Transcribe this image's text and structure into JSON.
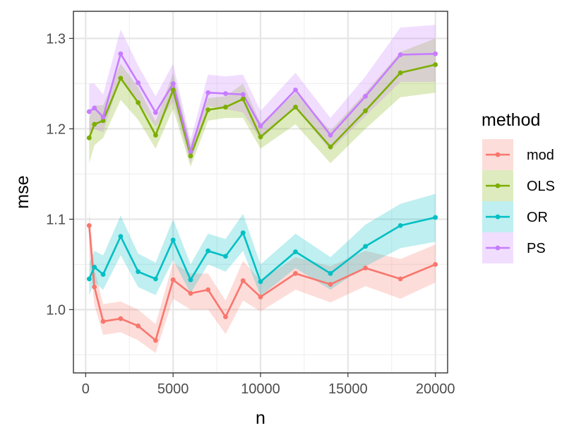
{
  "chart_data": {
    "type": "line",
    "xlabel": "n",
    "ylabel": "mse",
    "xlim": [
      -700,
      20700
    ],
    "ylim": [
      0.93,
      1.33
    ],
    "xticks": [
      0,
      5000,
      10000,
      15000,
      20000
    ],
    "yticks": [
      1.0,
      1.1,
      1.2,
      1.3
    ],
    "ytick_labels": [
      "1.0",
      "1.1",
      "1.2",
      "1.3"
    ],
    "grid": true,
    "legend": {
      "title": "method",
      "placement": "right"
    },
    "x": [
      200,
      500,
      1000,
      2000,
      3000,
      4000,
      5000,
      6000,
      7000,
      8000,
      9000,
      10000,
      12000,
      14000,
      16000,
      18000,
      20000
    ],
    "series": [
      {
        "name": "mod",
        "color": "#F8766D",
        "values": [
          1.093,
          1.025,
          0.987,
          0.99,
          0.982,
          0.966,
          1.033,
          1.018,
          1.022,
          0.992,
          1.032,
          1.014,
          1.04,
          1.028,
          1.046,
          1.034,
          1.05
        ],
        "lower": [
          1.06,
          1.005,
          0.972,
          0.975,
          0.966,
          0.952,
          1.012,
          1.0,
          1.0,
          0.973,
          1.01,
          0.998,
          1.022,
          1.008,
          1.026,
          1.012,
          1.03
        ],
        "upper": [
          1.11,
          1.045,
          1.006,
          1.009,
          1.0,
          0.984,
          1.052,
          1.04,
          1.04,
          1.01,
          1.054,
          1.032,
          1.058,
          1.048,
          1.065,
          1.056,
          1.072
        ]
      },
      {
        "name": "OLS",
        "color": "#7CAE00",
        "values": [
          1.19,
          1.205,
          1.209,
          1.256,
          1.229,
          1.193,
          1.243,
          1.17,
          1.221,
          1.224,
          1.233,
          1.191,
          1.224,
          1.18,
          1.22,
          1.262,
          1.271
        ],
        "lower": [
          1.162,
          1.182,
          1.19,
          1.232,
          1.21,
          1.178,
          1.222,
          1.158,
          1.209,
          1.212,
          1.212,
          1.178,
          1.205,
          1.162,
          1.2,
          1.235,
          1.24
        ],
        "upper": [
          1.212,
          1.226,
          1.226,
          1.272,
          1.246,
          1.208,
          1.262,
          1.183,
          1.234,
          1.236,
          1.25,
          1.206,
          1.24,
          1.198,
          1.24,
          1.285,
          1.3
        ]
      },
      {
        "name": "OR",
        "color": "#00BFC4",
        "values": [
          1.034,
          1.047,
          1.039,
          1.081,
          1.042,
          1.034,
          1.077,
          1.033,
          1.065,
          1.059,
          1.085,
          1.031,
          1.064,
          1.04,
          1.07,
          1.093,
          1.102
        ],
        "lower": [
          1.016,
          1.03,
          1.022,
          1.06,
          1.025,
          1.016,
          1.055,
          1.018,
          1.05,
          1.042,
          1.065,
          1.015,
          1.046,
          1.022,
          1.048,
          1.068,
          1.075
        ],
        "upper": [
          1.052,
          1.065,
          1.06,
          1.104,
          1.062,
          1.052,
          1.1,
          1.05,
          1.084,
          1.078,
          1.106,
          1.05,
          1.084,
          1.058,
          1.094,
          1.117,
          1.128
        ]
      },
      {
        "name": "PS",
        "color": "#C77CFF",
        "values": [
          1.219,
          1.223,
          1.213,
          1.283,
          1.251,
          1.218,
          1.25,
          1.175,
          1.24,
          1.239,
          1.238,
          1.203,
          1.243,
          1.193,
          1.236,
          1.282,
          1.283
        ],
        "lower": [
          1.196,
          1.2,
          1.196,
          1.258,
          1.23,
          1.202,
          1.23,
          1.162,
          1.225,
          1.222,
          1.218,
          1.188,
          1.224,
          1.176,
          1.214,
          1.252,
          1.252
        ],
        "upper": [
          1.25,
          1.25,
          1.238,
          1.31,
          1.27,
          1.236,
          1.272,
          1.188,
          1.26,
          1.258,
          1.26,
          1.22,
          1.262,
          1.212,
          1.258,
          1.312,
          1.315
        ]
      }
    ]
  }
}
